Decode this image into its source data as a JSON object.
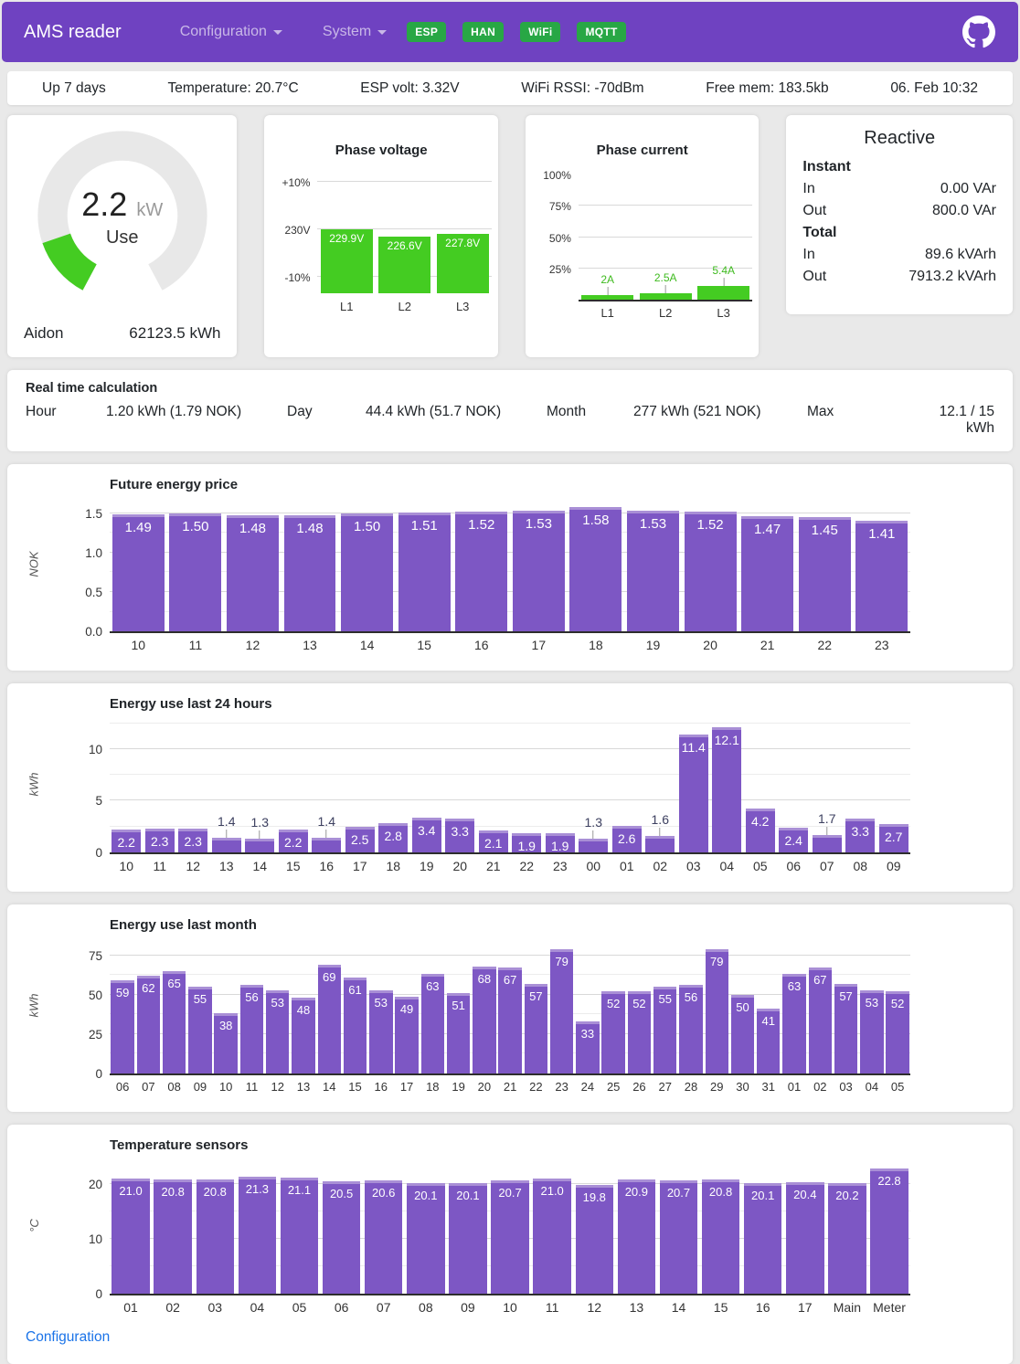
{
  "header": {
    "brand": "AMS reader",
    "menus": [
      {
        "label": "Configuration"
      },
      {
        "label": "System"
      }
    ],
    "badges": [
      "ESP",
      "HAN",
      "WiFi",
      "MQTT"
    ]
  },
  "status_bar": {
    "items": [
      "Up 7 days",
      "Temperature: 20.7°C",
      "ESP volt: 3.32V",
      "WiFi RSSI: -70dBm",
      "Free mem: 183.5kb",
      "06. Feb 10:32"
    ]
  },
  "gauge": {
    "value": "2.2",
    "unit": "kW",
    "label": "Use",
    "meter": "Aidon",
    "total": "62123.5 kWh"
  },
  "reactive": {
    "title": "Reactive",
    "rows": [
      {
        "type": "header",
        "label": "Instant"
      },
      {
        "label": "In",
        "value": "0.00 VAr"
      },
      {
        "label": "Out",
        "value": "800.0 VAr"
      },
      {
        "type": "header",
        "label": "Total"
      },
      {
        "label": "In",
        "value": "89.6 kVArh"
      },
      {
        "label": "Out",
        "value": "7913.2 kVArh"
      }
    ]
  },
  "realtime": {
    "title": "Real time calculation",
    "pairs": [
      {
        "label": "Hour",
        "value": "1.20 kWh (1.79 NOK)"
      },
      {
        "label": "Day",
        "value": "44.4 kWh (51.7 NOK)"
      },
      {
        "label": "Month",
        "value": "277 kWh (521 NOK)"
      },
      {
        "label": "Max",
        "value": "12.1 / 15 kWh"
      }
    ]
  },
  "footer": {
    "link": "Configuration"
  },
  "colors": {
    "header_purple": "#6f42c1",
    "badge_green": "#28a745",
    "bar_purple": "#7d57c4",
    "bar_cap": "#a98fd6",
    "chart_green": "#44cc22",
    "green_label": "#3fbb1f",
    "link_blue": "#1a73e8"
  },
  "chart_data": [
    {
      "id": "phase_voltage",
      "type": "bar",
      "title": "Phase voltage",
      "categories": [
        "L1",
        "L2",
        "L3"
      ],
      "values": [
        229.9,
        226.6,
        227.8
      ],
      "value_labels": [
        "229.9V",
        "226.6V",
        "227.8V"
      ],
      "ylim": [
        199,
        256.5
      ],
      "yticks": [
        {
          "v": 253,
          "label": "+10%"
        },
        {
          "v": 230,
          "label": "230V"
        },
        {
          "v": 207,
          "label": "-10%"
        }
      ],
      "grid": true,
      "legend": "none",
      "bar_color": "#44cc22",
      "label_mode": "inside"
    },
    {
      "id": "phase_current",
      "type": "bar",
      "title": "Phase current",
      "categories": [
        "L1",
        "L2",
        "L3"
      ],
      "values": [
        2,
        2.5,
        5.4
      ],
      "value_labels": [
        "2A",
        "2.5A",
        "5.4A"
      ],
      "ylim": [
        0,
        50
      ],
      "yticks": [
        {
          "v": 12.5,
          "label": "25%"
        },
        {
          "v": 25,
          "label": "50%"
        },
        {
          "v": 37.5,
          "label": "75%"
        },
        {
          "v": 50,
          "label": "100%"
        }
      ],
      "grid": true,
      "legend": "none",
      "bar_color": "#44cc22",
      "label_mode": "callout"
    },
    {
      "id": "price",
      "type": "bar",
      "title": "Future energy price",
      "xlabel": "",
      "ylabel": "NOK",
      "categories": [
        "10",
        "11",
        "12",
        "13",
        "14",
        "15",
        "16",
        "17",
        "18",
        "19",
        "20",
        "21",
        "22",
        "23"
      ],
      "values": [
        1.49,
        1.5,
        1.48,
        1.48,
        1.5,
        1.51,
        1.52,
        1.53,
        1.58,
        1.53,
        1.52,
        1.47,
        1.45,
        1.41
      ],
      "value_labels": [
        "1.49",
        "1.50",
        "1.48",
        "1.48",
        "1.50",
        "1.51",
        "1.52",
        "1.53",
        "1.58",
        "1.53",
        "1.52",
        "1.47",
        "1.45",
        "1.41"
      ],
      "ylim": [
        0,
        1.72
      ],
      "yticks": [
        {
          "v": 0,
          "label": "0.0"
        },
        {
          "v": 0.5,
          "label": "0.5"
        },
        {
          "v": 1.0,
          "label": "1.0"
        },
        {
          "v": 1.5,
          "label": "1.5"
        }
      ],
      "minor_step": 0.25,
      "grid": true,
      "legend": "none",
      "bar_color": "#7d57c4",
      "label_mode": "auto"
    },
    {
      "id": "last24",
      "type": "bar",
      "title": "Energy use last 24 hours",
      "xlabel": "",
      "ylabel": "kWh",
      "categories": [
        "10",
        "11",
        "12",
        "13",
        "14",
        "15",
        "16",
        "17",
        "18",
        "19",
        "20",
        "21",
        "22",
        "23",
        "00",
        "01",
        "02",
        "03",
        "04",
        "05",
        "06",
        "07",
        "08",
        "09"
      ],
      "values": [
        2.2,
        2.3,
        2.3,
        1.4,
        1.3,
        2.2,
        1.4,
        2.5,
        2.8,
        3.4,
        3.3,
        2.1,
        1.9,
        1.9,
        1.3,
        2.6,
        1.6,
        11.4,
        12.1,
        4.2,
        2.4,
        1.7,
        3.3,
        2.7
      ],
      "value_labels": [
        "2.2",
        "2.3",
        "2.3",
        "1.4",
        "1.3",
        "2.2",
        "1.4",
        "2.5",
        "2.8",
        "3.4",
        "3.3",
        "2.1",
        "1.9",
        "1.9",
        "1.3",
        "2.6",
        "1.6",
        "11.4",
        "12.1",
        "4.2",
        "2.4",
        "1.7",
        "3.3",
        "2.7"
      ],
      "ylim": [
        0,
        13.25
      ],
      "yticks": [
        {
          "v": 0,
          "label": "0"
        },
        {
          "v": 5,
          "label": "5"
        },
        {
          "v": 10,
          "label": "10"
        }
      ],
      "minor_step": 2.5,
      "grid": true,
      "legend": "none",
      "bar_color": "#7d57c4",
      "label_mode": "auto"
    },
    {
      "id": "month",
      "type": "bar",
      "title": "Energy use last month",
      "xlabel": "",
      "ylabel": "kWh",
      "categories": [
        "06",
        "07",
        "08",
        "09",
        "10",
        "11",
        "12",
        "13",
        "14",
        "15",
        "16",
        "17",
        "18",
        "19",
        "20",
        "21",
        "22",
        "23",
        "24",
        "25",
        "26",
        "27",
        "28",
        "29",
        "30",
        "31",
        "01",
        "02",
        "03",
        "04",
        "05"
      ],
      "values": [
        59,
        62,
        65,
        55,
        38,
        56,
        53,
        48,
        69,
        61,
        53,
        49,
        63,
        51,
        68,
        67,
        57,
        79,
        33,
        52,
        52,
        55,
        56,
        79,
        50,
        41,
        63,
        67,
        57,
        53,
        52
      ],
      "value_labels": [
        "59",
        "62",
        "65",
        "55",
        "38",
        "56",
        "53",
        "48",
        "69",
        "61",
        "53",
        "49",
        "63",
        "51",
        "68",
        "67",
        "57",
        "79",
        "33",
        "52",
        "52",
        "55",
        "56",
        "79",
        "50",
        "41",
        "63",
        "67",
        "57",
        "53",
        "52"
      ],
      "ylim": [
        0,
        87
      ],
      "yticks": [
        {
          "v": 0,
          "label": "0"
        },
        {
          "v": 25,
          "label": "25"
        },
        {
          "v": 50,
          "label": "50"
        },
        {
          "v": 75,
          "label": "75"
        }
      ],
      "minor_step": 12.5,
      "grid": true,
      "legend": "none",
      "bar_color": "#7d57c4",
      "label_mode": "auto"
    },
    {
      "id": "temps",
      "type": "bar",
      "title": "Temperature sensors",
      "xlabel": "",
      "ylabel": "°C",
      "categories": [
        "01",
        "02",
        "03",
        "04",
        "05",
        "06",
        "07",
        "08",
        "09",
        "10",
        "11",
        "12",
        "13",
        "14",
        "15",
        "16",
        "17",
        "Main",
        "Meter"
      ],
      "values": [
        21.0,
        20.8,
        20.8,
        21.3,
        21.1,
        20.5,
        20.6,
        20.1,
        20.1,
        20.7,
        21.0,
        19.8,
        20.9,
        20.7,
        20.8,
        20.1,
        20.4,
        20.2,
        22.8
      ],
      "value_labels": [
        "21.0",
        "20.8",
        "20.8",
        "21.3",
        "21.1",
        "20.5",
        "20.6",
        "20.1",
        "20.1",
        "20.7",
        "21.0",
        "19.8",
        "20.9",
        "20.7",
        "20.8",
        "20.1",
        "20.4",
        "20.2",
        "22.8"
      ],
      "ylim": [
        0,
        25
      ],
      "yticks": [
        {
          "v": 0,
          "label": "0"
        },
        {
          "v": 10,
          "label": "10"
        },
        {
          "v": 20,
          "label": "20"
        }
      ],
      "minor_step": 5,
      "grid": true,
      "legend": "none",
      "bar_color": "#7d57c4",
      "label_mode": "auto"
    }
  ]
}
